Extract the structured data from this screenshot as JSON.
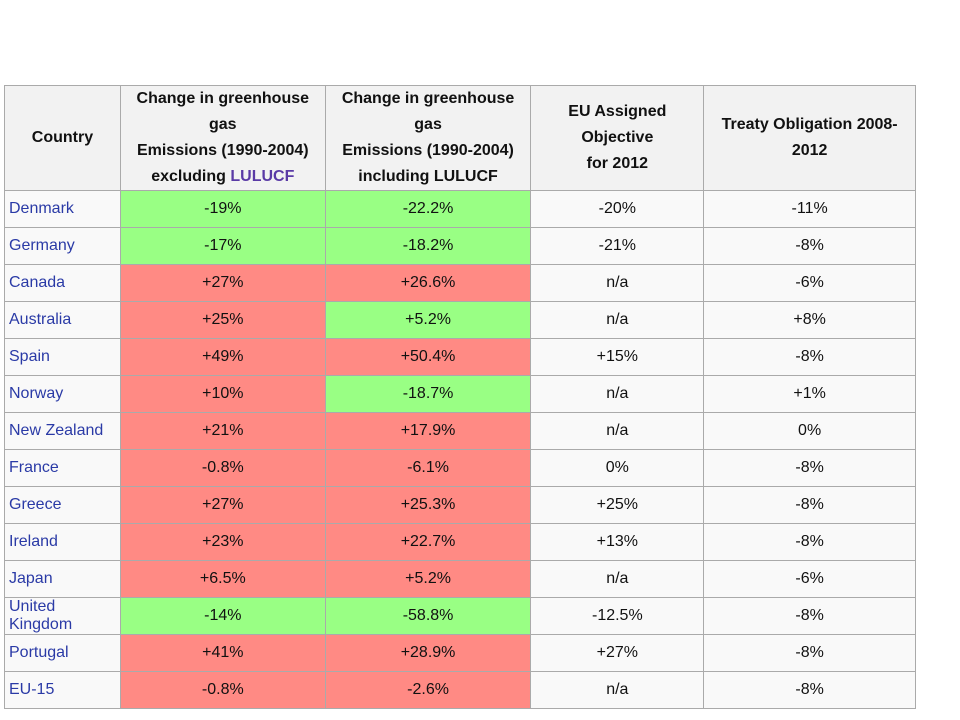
{
  "table": {
    "headers": {
      "country": "Country",
      "excl": {
        "line1": "Change in greenhouse gas",
        "line2": "Emissions (1990-2004)",
        "line3_prefix": "excluding ",
        "line3_link": "LULUCF"
      },
      "incl": {
        "line1": "Change in greenhouse gas",
        "line2": "Emissions (1990-2004)",
        "line3": "including LULUCF"
      },
      "eu": {
        "line1": "EU Assigned Objective",
        "line2": "for 2012"
      },
      "treaty": "Treaty Obligation 2008-2012"
    },
    "colors": {
      "green": "#99ff84",
      "red": "#ff8a84",
      "link": "#2a3aa6"
    },
    "rows": [
      {
        "country": "Denmark",
        "excl": "-19%",
        "excl_color": "green",
        "incl": "-22.2%",
        "incl_color": "green",
        "eu": "-20%",
        "treaty": "-11%"
      },
      {
        "country": "Germany",
        "excl": "-17%",
        "excl_color": "green",
        "incl": "-18.2%",
        "incl_color": "green",
        "eu": "-21%",
        "treaty": "-8%"
      },
      {
        "country": "Canada",
        "excl": "+27%",
        "excl_color": "red",
        "incl": "+26.6%",
        "incl_color": "red",
        "eu": "n/a",
        "treaty": "-6%"
      },
      {
        "country": "Australia",
        "excl": "+25%",
        "excl_color": "red",
        "incl": "+5.2%",
        "incl_color": "green",
        "eu": "n/a",
        "treaty": "+8%"
      },
      {
        "country": "Spain",
        "excl": "+49%",
        "excl_color": "red",
        "incl": "+50.4%",
        "incl_color": "red",
        "eu": "+15%",
        "treaty": "-8%"
      },
      {
        "country": "Norway",
        "excl": "+10%",
        "excl_color": "red",
        "incl": "-18.7%",
        "incl_color": "green",
        "eu": "n/a",
        "treaty": "+1%"
      },
      {
        "country": "New Zealand",
        "excl": "+21%",
        "excl_color": "red",
        "incl": "+17.9%",
        "incl_color": "red",
        "eu": "n/a",
        "treaty": "0%"
      },
      {
        "country": "France",
        "excl": "-0.8%",
        "excl_color": "red",
        "incl": "-6.1%",
        "incl_color": "red",
        "eu": "0%",
        "treaty": "-8%"
      },
      {
        "country": "Greece",
        "excl": "+27%",
        "excl_color": "red",
        "incl": "+25.3%",
        "incl_color": "red",
        "eu": "+25%",
        "treaty": "-8%"
      },
      {
        "country": "Ireland",
        "excl": "+23%",
        "excl_color": "red",
        "incl": "+22.7%",
        "incl_color": "red",
        "eu": "+13%",
        "treaty": "-8%"
      },
      {
        "country": "Japan",
        "excl": "+6.5%",
        "excl_color": "red",
        "incl": "+5.2%",
        "incl_color": "red",
        "eu": "n/a",
        "treaty": "-6%"
      },
      {
        "country": "United Kingdom",
        "excl": "-14%",
        "excl_color": "green",
        "incl": "-58.8%",
        "incl_color": "green",
        "eu": "-12.5%",
        "treaty": "-8%"
      },
      {
        "country": "Portugal",
        "excl": "+41%",
        "excl_color": "red",
        "incl": "+28.9%",
        "incl_color": "red",
        "eu": "+27%",
        "treaty": "-8%"
      },
      {
        "country": "EU-15",
        "excl": "-0.8%",
        "excl_color": "red",
        "incl": "-2.6%",
        "incl_color": "red",
        "eu": "n/a",
        "treaty": "-8%"
      }
    ]
  }
}
